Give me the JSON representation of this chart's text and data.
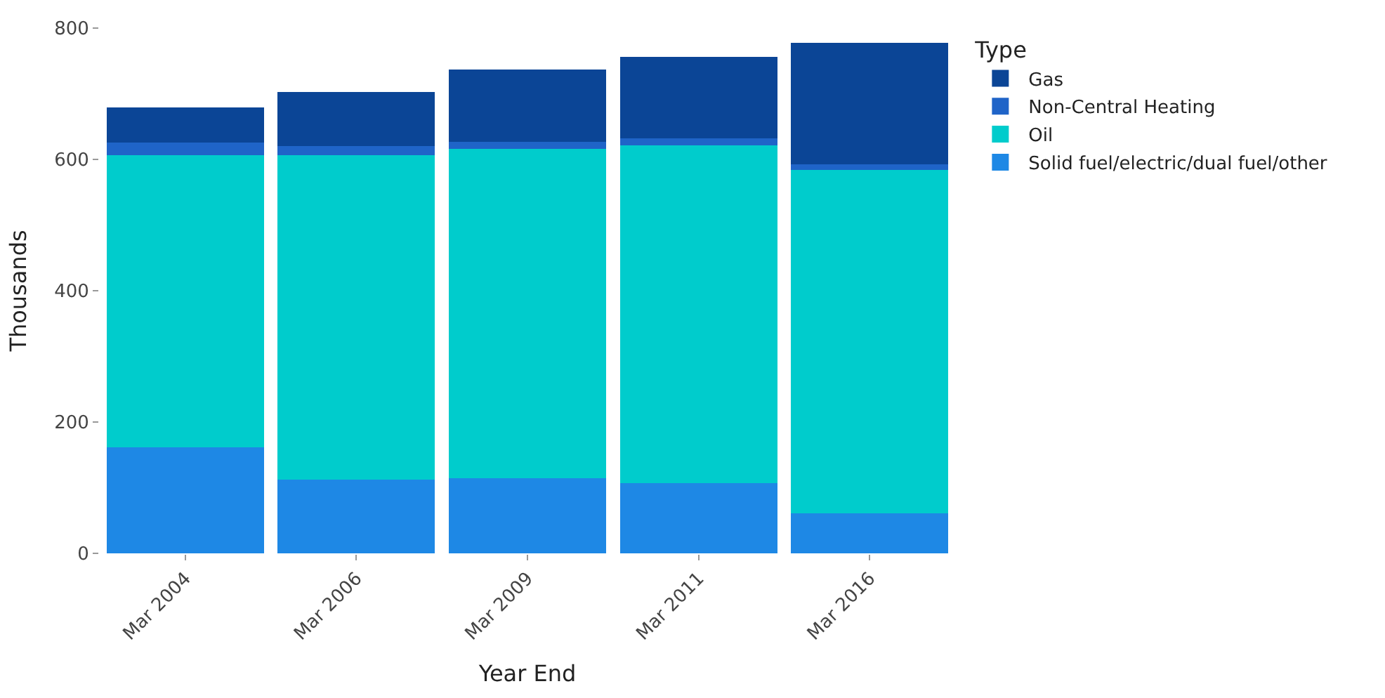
{
  "chart_data": {
    "type": "bar",
    "stacked": true,
    "xlabel": "Year End",
    "ylabel": "Thousands",
    "legend_title": "Type",
    "categories": [
      "Mar 2004",
      "Mar 2006",
      "Mar 2009",
      "Mar 2011",
      "Mar 2016"
    ],
    "series": [
      {
        "name": "Solid fuel/electric/dual fuel/other",
        "color": "#1e88e5",
        "values": [
          162,
          112,
          114,
          107,
          61
        ]
      },
      {
        "name": "Oil",
        "color": "#00cccc",
        "values": [
          444,
          494,
          502,
          514,
          523
        ]
      },
      {
        "name": "Non-Central Heating",
        "color": "#1f64c8",
        "values": [
          20,
          14,
          11,
          11,
          8
        ]
      },
      {
        "name": "Gas",
        "color": "#0b4596",
        "values": [
          53,
          83,
          110,
          124,
          186
        ]
      }
    ],
    "ylim": [
      0,
      800
    ],
    "yticks": [
      0,
      200,
      400,
      600,
      800
    ],
    "legend": "top right"
  }
}
